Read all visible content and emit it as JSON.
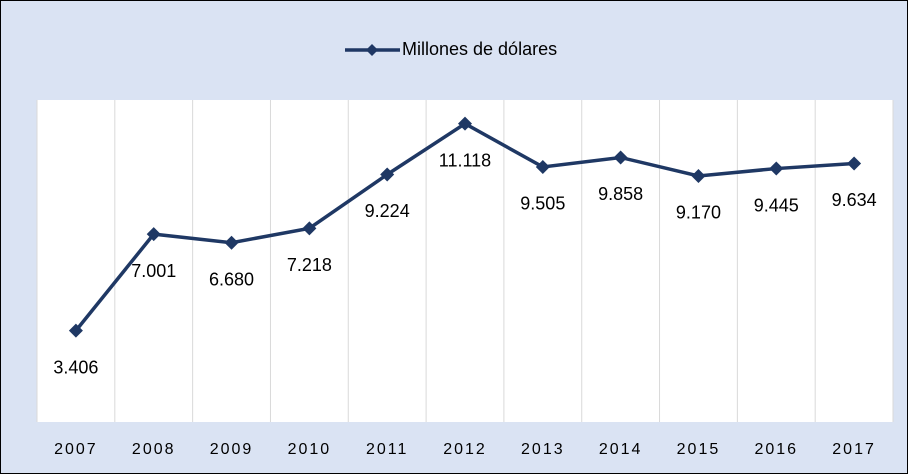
{
  "chart_data": {
    "type": "line",
    "categories": [
      "2007",
      "2008",
      "2009",
      "2010",
      "2011",
      "2012",
      "2013",
      "2014",
      "2015",
      "2016",
      "2017"
    ],
    "series": [
      {
        "name": "Millones de dólares",
        "color": "#1f3864",
        "values": [
          3406,
          7001,
          6680,
          7218,
          9224,
          11118,
          9505,
          9858,
          9170,
          9445,
          9634
        ],
        "value_labels": [
          "3.406",
          "7.001",
          "6.680",
          "7.218",
          "9.224",
          "11.118",
          "9.505",
          "9.858",
          "9.170",
          "9.445",
          "9.634"
        ]
      }
    ],
    "ylim": [
      0,
      12000
    ],
    "legend": "top"
  }
}
